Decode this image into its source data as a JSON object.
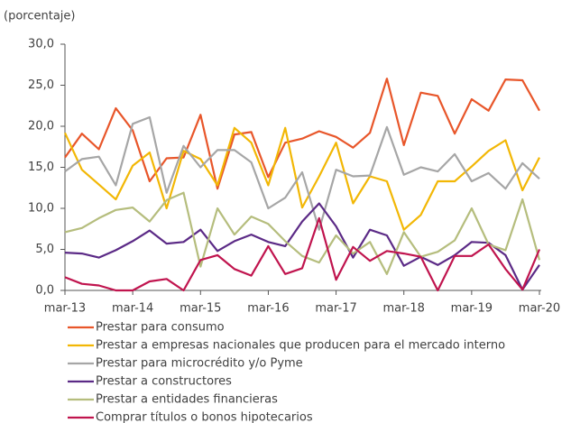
{
  "chart_data": {
    "type": "line",
    "y_label": "(porcentaje)",
    "categories": [
      "mar-13",
      null,
      null,
      null,
      "mar-14",
      null,
      null,
      null,
      "mar-15",
      null,
      null,
      null,
      "mar-16",
      null,
      null,
      null,
      "mar-17",
      null,
      null,
      null,
      "mar-18",
      null,
      null,
      null,
      "mar-19",
      null,
      null,
      null,
      "mar-20"
    ],
    "ylim": [
      0,
      30
    ],
    "yticks": [
      {
        "value": 0,
        "label": "0,0"
      },
      {
        "value": 5,
        "label": "5,0"
      },
      {
        "value": 10,
        "label": "10,0"
      },
      {
        "value": 15,
        "label": "15,0"
      },
      {
        "value": 20,
        "label": "20,0"
      },
      {
        "value": 25,
        "label": "25,0"
      },
      {
        "value": 30,
        "label": "30,0"
      }
    ],
    "grid": false,
    "legend": "bottom",
    "series": [
      {
        "name": "Prestar para consumo",
        "color": "#e8562a",
        "values": [
          16.2,
          19.1,
          17.2,
          22.2,
          19.5,
          13.3,
          16.1,
          16.2,
          21.4,
          12.4,
          19.0,
          19.3,
          13.8,
          18.0,
          18.5,
          19.4,
          18.7,
          17.4,
          19.2,
          25.8,
          17.7,
          24.1,
          23.7,
          19.1,
          23.3,
          21.9,
          25.7,
          25.6,
          21.9
        ]
      },
      {
        "name": "Prestar a empresas nacionales que producen para el mercado interno",
        "color": "#f2b705",
        "values": [
          19.2,
          14.7,
          12.9,
          11.1,
          15.2,
          16.8,
          10.0,
          17.0,
          16.0,
          12.8,
          19.8,
          18.0,
          12.8,
          19.8,
          10.1,
          13.9,
          18.0,
          10.6,
          13.9,
          13.3,
          7.4,
          9.2,
          13.3,
          13.3,
          15.1,
          17.0,
          18.3,
          12.2,
          16.2
        ]
      },
      {
        "name": "Prestar para microcrédito y/o Pyme",
        "color": "#a6a6a6",
        "values": [
          14.5,
          16.0,
          16.3,
          12.8,
          20.3,
          21.1,
          11.9,
          17.6,
          15.0,
          17.1,
          17.1,
          15.6,
          10.0,
          11.3,
          14.4,
          7.4,
          14.7,
          13.9,
          14.0,
          19.9,
          14.1,
          15.0,
          14.5,
          16.6,
          13.3,
          14.3,
          12.4,
          15.5,
          13.6
        ]
      },
      {
        "name": "Prestar a constructores",
        "color": "#5b2a86",
        "values": [
          4.6,
          4.5,
          4.0,
          4.9,
          6.0,
          7.3,
          5.7,
          5.9,
          7.4,
          4.8,
          6.0,
          6.8,
          5.9,
          5.4,
          8.4,
          10.6,
          7.8,
          4.0,
          7.4,
          6.7,
          3.0,
          4.1,
          3.1,
          4.3,
          5.9,
          5.8,
          4.3,
          0.1,
          3.1
        ]
      },
      {
        "name": "Prestar a entidades financieras",
        "color": "#b5bd7d",
        "values": [
          7.1,
          7.6,
          8.8,
          9.8,
          10.1,
          8.4,
          11.0,
          11.9,
          2.9,
          10.0,
          6.8,
          9.0,
          8.1,
          6.0,
          4.2,
          3.4,
          6.7,
          4.5,
          5.9,
          2.0,
          7.1,
          4.1,
          4.7,
          6.1,
          10.0,
          5.6,
          4.9,
          11.1,
          3.7
        ]
      },
      {
        "name": "Comprar títulos o bonos hipotecarios",
        "color": "#c0144e",
        "values": [
          1.6,
          0.8,
          0.6,
          0.0,
          0.0,
          1.1,
          1.4,
          0.0,
          3.7,
          4.3,
          2.6,
          1.8,
          5.4,
          2.0,
          2.7,
          8.8,
          1.3,
          5.3,
          3.6,
          4.8,
          4.5,
          4.1,
          0.0,
          4.2,
          4.2,
          5.6,
          2.6,
          0.1,
          5.0
        ]
      }
    ]
  }
}
